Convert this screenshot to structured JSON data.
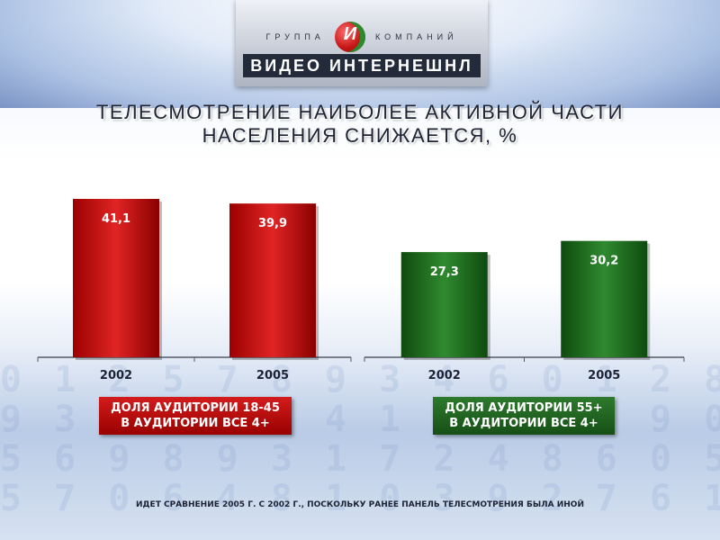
{
  "header": {
    "company_prefix": "ГРУППА",
    "company_suffix": "КОМПАНИЙ",
    "logo_letter": "И",
    "company_name": "ВИДЕО ИНТЕРНЕШНЛ"
  },
  "title_line1": "ТЕЛЕСМОТРЕНИЕ НАИБОЛЕЕ АКТИВНОЙ ЧАСТИ",
  "title_line2": "НАСЕЛЕНИЯ СНИЖАЕТСЯ, %",
  "colors": {
    "red": "#c40c0c",
    "green": "#1f6b1f"
  },
  "chart_data": [
    {
      "type": "bar",
      "categories": [
        "2002",
        "2005"
      ],
      "values": [
        41.1,
        39.9
      ],
      "value_labels": [
        "41,1",
        "39,9"
      ],
      "ylim": [
        0,
        45
      ],
      "color": "#c40c0c",
      "legend": [
        "ДОЛЯ АУДИТОРИИ 18-45",
        "В АУДИТОРИИ ВСЕ 4+"
      ]
    },
    {
      "type": "bar",
      "categories": [
        "2002",
        "2005"
      ],
      "values": [
        27.3,
        30.2
      ],
      "value_labels": [
        "27,3",
        "30,2"
      ],
      "ylim": [
        0,
        45
      ],
      "color": "#1f6b1f",
      "legend": [
        "ДОЛЯ АУДИТОРИИ 55+",
        "В АУДИТОРИИ ВСЕ 4+"
      ]
    }
  ],
  "footnote": "ИДЕТ СРАВНЕНИЕ 2005 Г. С 2002 Г., ПОСКОЛЬКУ РАНЕЕ ПАНЕЛЬ ТЕЛЕСМОТРЕНИЯ БЫЛА ИНОЙ"
}
